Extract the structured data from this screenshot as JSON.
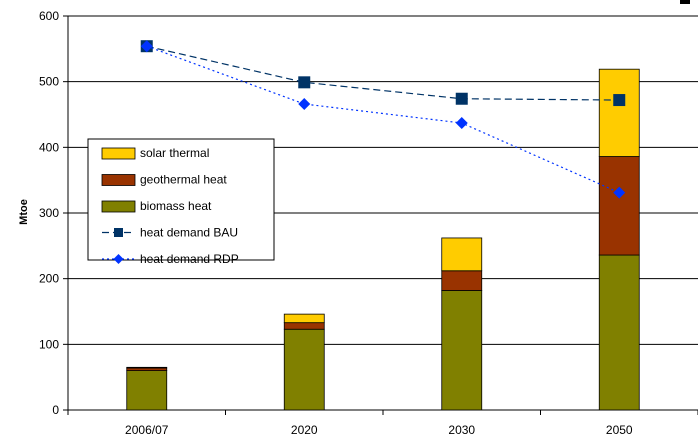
{
  "chart_data": {
    "type": "bar",
    "title": "",
    "xlabel": "",
    "ylabel": "Mtoe",
    "ylim": [
      0,
      600
    ],
    "yticks": [
      0,
      100,
      200,
      300,
      400,
      500,
      600
    ],
    "categories": [
      "2006/07",
      "2020",
      "2030",
      "2050"
    ],
    "stacked": true,
    "legend_position": "left",
    "series": [
      {
        "name": "biomass heat",
        "kind": "bar",
        "color": "#808000",
        "values": [
          60,
          123,
          182,
          236
        ]
      },
      {
        "name": "geothermal heat",
        "kind": "bar",
        "color": "#993300",
        "values": [
          4,
          10,
          30,
          150
        ]
      },
      {
        "name": "solar thermal",
        "kind": "bar",
        "color": "#FFCC00",
        "values": [
          1,
          13,
          50,
          133
        ]
      },
      {
        "name": "heat demand BAU",
        "kind": "line",
        "color": "#003366",
        "marker": "square",
        "dash": "dashed",
        "values": [
          554,
          499,
          474,
          472
        ]
      },
      {
        "name": "heat demand RDP",
        "kind": "line",
        "color": "#0033FF",
        "marker": "diamond",
        "dash": "dotted",
        "values": [
          554,
          466,
          437,
          331
        ]
      }
    ],
    "legend_order": [
      "solar thermal",
      "geothermal heat",
      "biomass heat",
      "heat demand BAU",
      "heat demand RDP"
    ]
  }
}
